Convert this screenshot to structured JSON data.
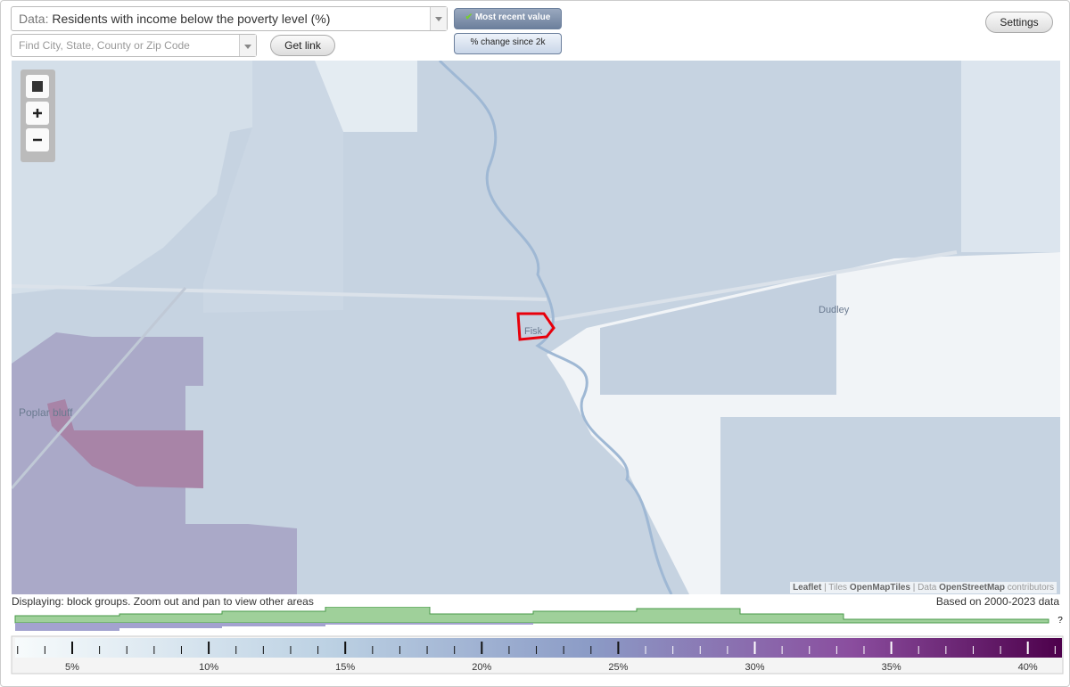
{
  "controls": {
    "data_label": "Data:",
    "data_value": "Residents with income below the poverty level (%)",
    "search_placeholder": "Find City, State, County or Zip Code",
    "get_link": "Get link",
    "most_recent": "Most recent value",
    "change": "% change since 2k",
    "settings": "Settings"
  },
  "map": {
    "places": [
      "Fisk",
      "Dudley",
      "Poplar bluff"
    ],
    "attribution": {
      "leaflet": "Leaflet",
      "tiles": "Tiles",
      "tiles_source": "OpenMapTiles",
      "data": "Data",
      "data_source": "OpenStreetMap",
      "contributors": "contributors"
    }
  },
  "footer": {
    "displaying": "Displaying: block groups. Zoom out and pan to view other areas",
    "based_on": "Based on 2000-2023 data"
  },
  "legend": {
    "ticks": [
      "5%",
      "10%",
      "15%",
      "20%",
      "25%",
      "30%",
      "35%",
      "40%"
    ],
    "unknown": "?"
  }
}
